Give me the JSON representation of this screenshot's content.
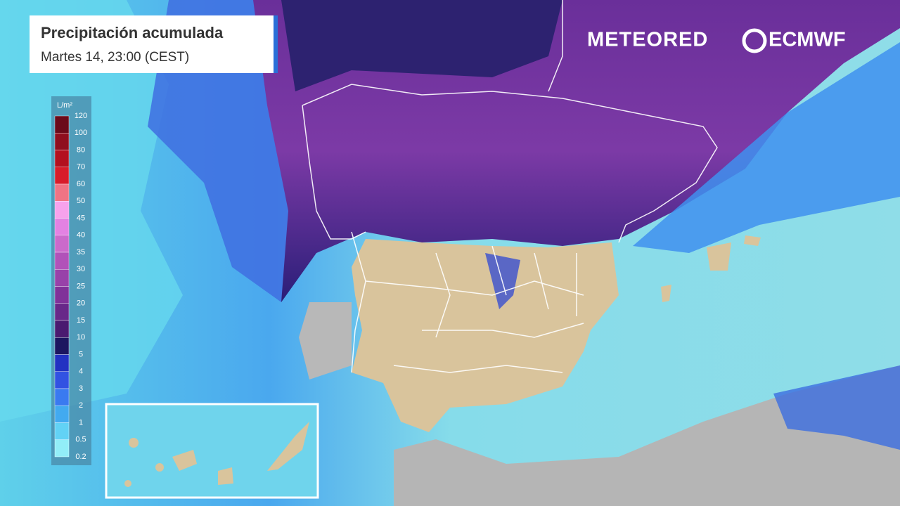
{
  "header": {
    "title": "Precipitación acumulada",
    "subtitle": "Martes 14, 23:00 (CEST)"
  },
  "logos": {
    "brand": "METEORED",
    "partner": "ECMWF"
  },
  "legend": {
    "unit": "L/m²",
    "values": [
      120,
      100,
      80,
      70,
      60,
      50,
      45,
      40,
      35,
      30,
      25,
      20,
      15,
      10,
      5,
      4,
      3,
      2,
      1,
      0.5,
      0.2
    ],
    "colors": [
      "#6b0a1a",
      "#8f0f1f",
      "#b3101f",
      "#d81c2a",
      "#f07484",
      "#f7a2ec",
      "#e382e2",
      "#cb6acb",
      "#b152b9",
      "#9842a9",
      "#803299",
      "#682889",
      "#4a1a70",
      "#1c1660",
      "#2232c2",
      "#3252e2",
      "#3a7af0",
      "#42aaf0",
      "#62d2f5",
      "#92eef8"
    ]
  }
}
